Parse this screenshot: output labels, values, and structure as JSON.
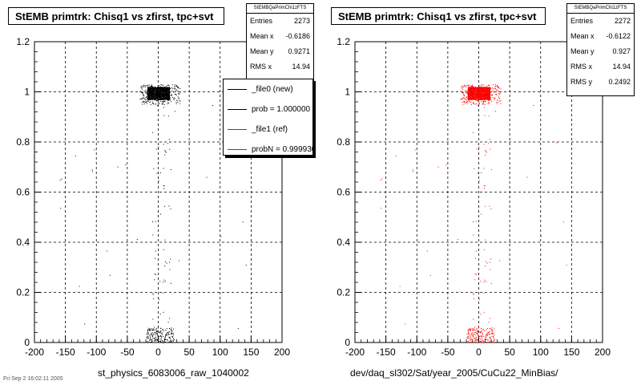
{
  "page": {
    "footer_stamp": "Fri Sep 2 16:02:11 2005"
  },
  "chart_data": [
    {
      "type": "scatter",
      "title": "StEMB primtrk: Chisq1 vs zfirst, tpc+svt",
      "xlabel": "st_physics_6083006_raw_1040002",
      "ylabel": "",
      "xlim": [
        -200,
        200
      ],
      "ylim": [
        0,
        1.2
      ],
      "xticks": [
        -200,
        -150,
        -100,
        -50,
        0,
        50,
        100,
        150,
        200
      ],
      "yticks": [
        0,
        0.2,
        0.4,
        0.6,
        0.8,
        1,
        1.2
      ],
      "grid": true,
      "color": "#000000",
      "stats": {
        "header": "StEMBQaPrimChi1zFTS",
        "rows": [
          {
            "label": "Entries",
            "value": "2273"
          },
          {
            "label": "Mean x",
            "value": "-0.6186"
          },
          {
            "label": "Mean y",
            "value": "0.9271"
          },
          {
            "label": "RMS x",
            "value": "14.94"
          }
        ]
      },
      "legend": {
        "placement": "top-right",
        "entries": [
          {
            "label": "_file0 (new)",
            "color": "#000000"
          },
          {
            "label": "prob = 1.000000",
            "color": "#000000"
          },
          {
            "label": "_file1 (ref)",
            "color": "#ff0000"
          },
          {
            "label": "probN = 0.999930",
            "color": "#ff0000"
          }
        ]
      },
      "clusters": [
        {
          "x": [
            -18,
            18
          ],
          "y": [
            0.97,
            1.02
          ],
          "n": 1500
        },
        {
          "x": [
            -30,
            35
          ],
          "y": [
            0.95,
            1.03
          ],
          "n": 250
        },
        {
          "x": [
            -20,
            25
          ],
          "y": [
            0.0,
            0.06
          ],
          "n": 180
        },
        {
          "x": [
            -10,
            20
          ],
          "y": [
            0.06,
            0.95
          ],
          "n": 60
        },
        {
          "x": [
            -160,
            150
          ],
          "y": [
            0.0,
            1.0
          ],
          "n": 25
        }
      ]
    },
    {
      "type": "scatter",
      "title": "StEMB primtrk: Chisq1 vs zfirst, tpc+svt",
      "xlabel": "dev/daq_sl302/Sat/year_2005/CuCu22_MinBias/",
      "ylabel": "",
      "xlim": [
        -200,
        200
      ],
      "ylim": [
        0,
        1.2
      ],
      "xticks": [
        -200,
        -150,
        -100,
        -50,
        0,
        50,
        100,
        150,
        200
      ],
      "yticks": [
        0,
        0.2,
        0.4,
        0.6,
        0.8,
        1,
        1.2
      ],
      "grid": true,
      "color": "#ff0000",
      "stats": {
        "header": "StEMBQaPrimChi1zFTS",
        "rows": [
          {
            "label": "Entries",
            "value": "2272"
          },
          {
            "label": "Mean x",
            "value": "-0.6122"
          },
          {
            "label": "Mean y",
            "value": "0.927"
          },
          {
            "label": "RMS x",
            "value": "14.94"
          },
          {
            "label": "RMS y",
            "value": "0.2492"
          }
        ]
      },
      "clusters": [
        {
          "x": [
            -18,
            18
          ],
          "y": [
            0.97,
            1.02
          ],
          "n": 1500
        },
        {
          "x": [
            -30,
            35
          ],
          "y": [
            0.95,
            1.03
          ],
          "n": 250
        },
        {
          "x": [
            -20,
            25
          ],
          "y": [
            0.0,
            0.06
          ],
          "n": 180
        },
        {
          "x": [
            -10,
            20
          ],
          "y": [
            0.06,
            0.95
          ],
          "n": 60
        },
        {
          "x": [
            -160,
            150
          ],
          "y": [
            0.0,
            1.0
          ],
          "n": 25
        }
      ]
    }
  ]
}
